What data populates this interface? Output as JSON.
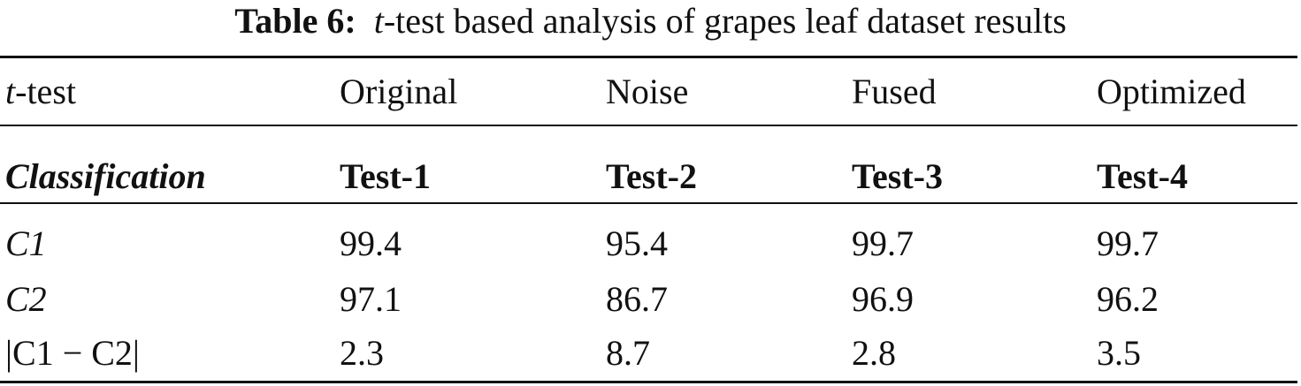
{
  "caption": {
    "label": "Table 6:",
    "t_italic": "t",
    "text": "-test based analysis of grapes leaf dataset results"
  },
  "header": {
    "first_italic": "t",
    "first_rest": "-test",
    "columns": [
      "Original",
      "Noise",
      "Fused",
      "Optimized"
    ]
  },
  "subheader": {
    "label": "Classification",
    "tests": [
      "Test-1",
      "Test-2",
      "Test-3",
      "Test-4"
    ]
  },
  "rows": [
    {
      "label": "C1",
      "values": [
        "99.4",
        "95.4",
        "99.7",
        "99.7"
      ]
    },
    {
      "label": "C2",
      "values": [
        "97.1",
        "86.7",
        "96.9",
        "96.2"
      ]
    },
    {
      "label": "|C1 − C2|",
      "values": [
        "2.3",
        "8.7",
        "2.8",
        "3.5"
      ]
    }
  ]
}
